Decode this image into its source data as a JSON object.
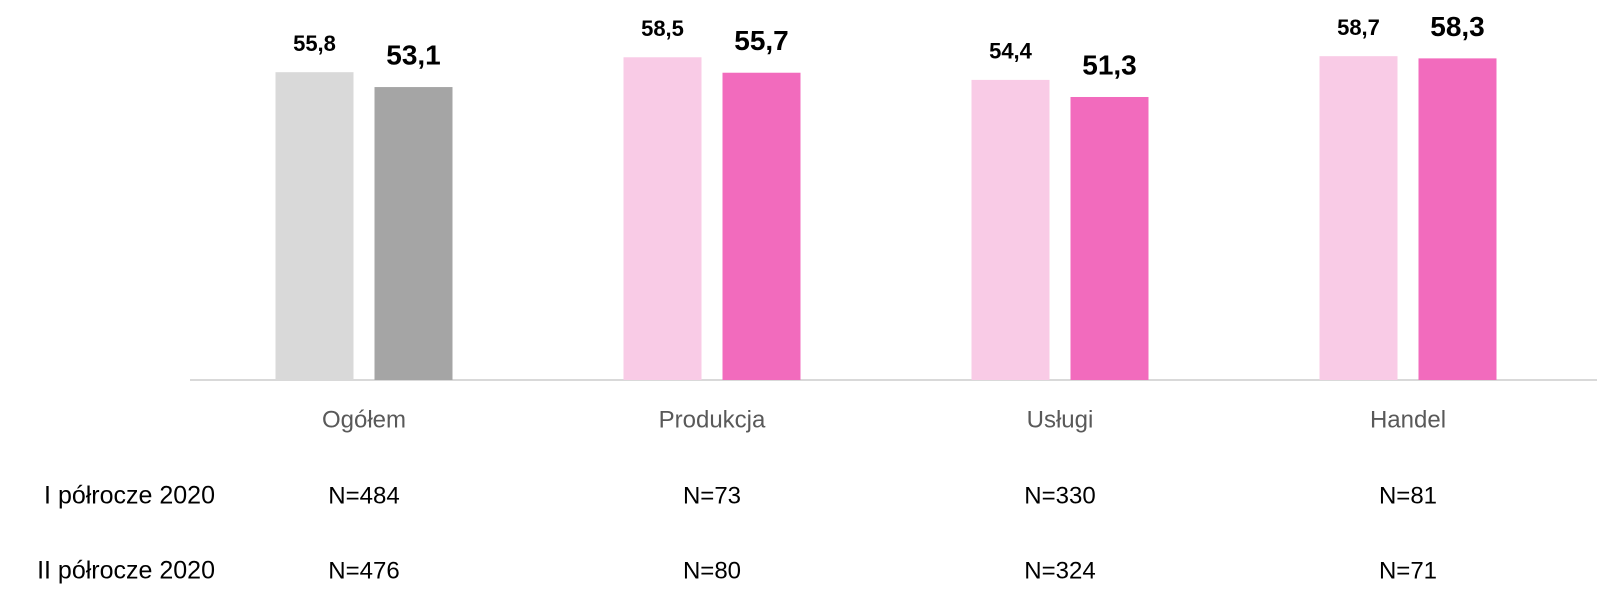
{
  "chart_data": {
    "type": "bar",
    "categories": [
      "Ogółem",
      "Produkcja",
      "Usługi",
      "Handel"
    ],
    "series": [
      {
        "name": "I półrocze 2020",
        "colors": [
          "#d9d9d9",
          "#f9cbe6",
          "#f9cbe6",
          "#f9cbe6"
        ],
        "values": [
          55.8,
          58.5,
          54.4,
          58.7
        ],
        "value_labels": [
          "55,8",
          "58,5",
          "54,4",
          "58,7"
        ],
        "n_labels": [
          "N=484",
          "N=73",
          "N=330",
          "N=81"
        ]
      },
      {
        "name": "II półrocze 2020",
        "colors": [
          "#a5a5a5",
          "#f26bbd",
          "#f26bbd",
          "#f26bbd"
        ],
        "values": [
          53.1,
          55.7,
          51.3,
          58.3
        ],
        "value_labels": [
          "53,1",
          "55,7",
          "51,3",
          "58,3"
        ],
        "n_labels": [
          "N=476",
          "N=80",
          "N=324",
          "N=71"
        ]
      }
    ],
    "ylim": [
      0,
      60
    ]
  }
}
